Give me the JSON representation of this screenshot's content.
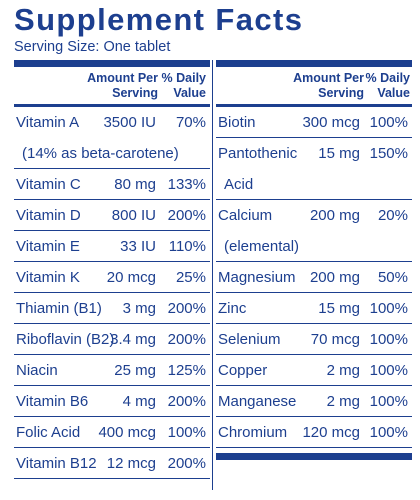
{
  "title": "Supplement Facts",
  "serving_size": "Serving Size: One tablet",
  "headers": {
    "amount_line1": "Amount Per",
    "amount_line2": "Serving",
    "dv_line1": "% Daily",
    "dv_line2": "Value"
  },
  "left_rows": [
    {
      "name": "Vitamin A",
      "amount": "3500 IU",
      "dv": "70%"
    },
    {
      "note": "(14% as beta-carotene)"
    },
    {
      "name": "Vitamin C",
      "amount": "80 mg",
      "dv": "133%"
    },
    {
      "name": "Vitamin D",
      "amount": "800 IU",
      "dv": "200%"
    },
    {
      "name": "Vitamin E",
      "amount": "33 IU",
      "dv": "110%"
    },
    {
      "name": "Vitamin K",
      "amount": "20 mcg",
      "dv": "25%"
    },
    {
      "name": "Thiamin (B1)",
      "amount": "3 mg",
      "dv": "200%"
    },
    {
      "name": "Riboflavin (B2)",
      "amount": "3.4 mg",
      "dv": "200%"
    },
    {
      "name": "Niacin",
      "amount": "25 mg",
      "dv": "125%"
    },
    {
      "name": "Vitamin B6",
      "amount": "4 mg",
      "dv": "200%"
    },
    {
      "name": "Folic Acid",
      "amount": "400 mcg",
      "dv": "100%"
    },
    {
      "name": "Vitamin B12",
      "amount": "12 mcg",
      "dv": "200%"
    }
  ],
  "right_rows": [
    {
      "name": "Biotin",
      "amount": "300 mcg",
      "dv": "100%"
    },
    {
      "name": "Pantothenic",
      "amount": "15 mg",
      "dv": "150%"
    },
    {
      "note": "Acid"
    },
    {
      "name": "Calcium",
      "amount": "200 mg",
      "dv": "20%"
    },
    {
      "note": "(elemental)"
    },
    {
      "name": "Magnesium",
      "amount": "200 mg",
      "dv": "50%"
    },
    {
      "name": "Zinc",
      "amount": "15 mg",
      "dv": "100%"
    },
    {
      "name": "Selenium",
      "amount": "70 mcg",
      "dv": "100%"
    },
    {
      "name": "Copper",
      "amount": "2 mg",
      "dv": "100%"
    },
    {
      "name": "Manganese",
      "amount": "2 mg",
      "dv": "100%"
    },
    {
      "name": "Chromium",
      "amount": "120 mcg",
      "dv": "100%"
    }
  ]
}
